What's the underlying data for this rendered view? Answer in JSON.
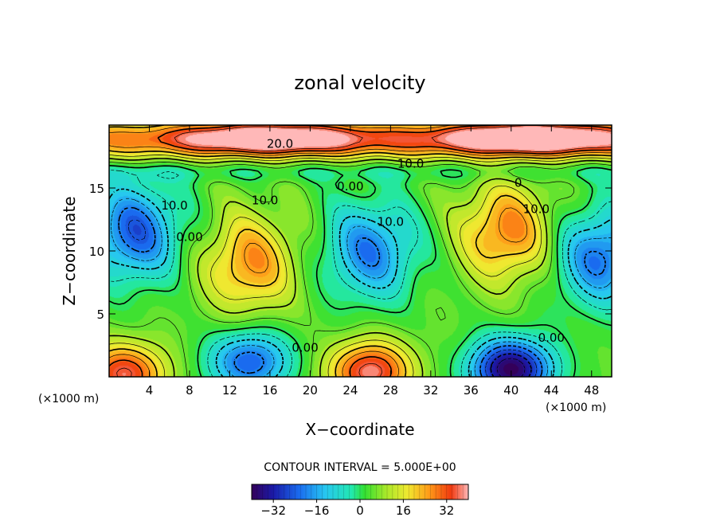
{
  "chart_data": {
    "type": "heatmap",
    "title": "zonal velocity",
    "xlabel": "X−coordinate",
    "ylabel": "Z−coordinate",
    "x_unit_left": "(×1000 m)",
    "x_unit_right": "(×1000 m)",
    "x_ticks": [
      4,
      8,
      12,
      16,
      20,
      24,
      28,
      32,
      36,
      40,
      44,
      48
    ],
    "y_ticks": [
      5,
      10,
      15
    ],
    "xlim": [
      0,
      50
    ],
    "ylim": [
      0,
      20
    ],
    "contour_interval_label": "CONTOUR INTERVAL = 5.000E+00",
    "colorbar": {
      "range": [
        -40,
        40
      ],
      "tick_values": [
        -32,
        -16,
        0,
        16,
        32
      ],
      "tick_labels": [
        "−32",
        "−16",
        "0",
        "16",
        "32"
      ]
    },
    "contour_labels": [
      {
        "text": "20.0",
        "x": 17.0,
        "z": 18.2
      },
      {
        "text": "10.0",
        "x": 30.0,
        "z": 16.6
      },
      {
        "text": "0.00",
        "x": 24.0,
        "z": 14.8
      },
      {
        "text": "10.0",
        "x": 15.5,
        "z": 13.7
      },
      {
        "text": "10.0",
        "x": 6.5,
        "z": 13.3
      },
      {
        "text": "0.00",
        "x": 8.0,
        "z": 10.8
      },
      {
        "text": "10.0",
        "x": 28.0,
        "z": 12.0
      },
      {
        "text": "10.0",
        "x": 42.5,
        "z": 13.0
      },
      {
        "text": "0",
        "x": 40.7,
        "z": 15.1
      },
      {
        "text": "0.00",
        "x": 19.5,
        "z": 2.0
      },
      {
        "text": "0.00",
        "x": 44.0,
        "z": 2.8
      }
    ],
    "field_features": [
      {
        "x": 1.5,
        "z": 0.2,
        "value": 36
      },
      {
        "x": 14.0,
        "z": 9.0,
        "value": 26
      },
      {
        "x": 26.0,
        "z": 0.4,
        "value": 38
      },
      {
        "x": 39.5,
        "z": 11.5,
        "value": 28
      },
      {
        "x": 2.5,
        "z": 11.5,
        "value": -24
      },
      {
        "x": 14.0,
        "z": 1.2,
        "value": -24
      },
      {
        "x": 26.0,
        "z": 10.0,
        "value": -20
      },
      {
        "x": 40.0,
        "z": 0.6,
        "value": -40
      },
      {
        "x": 49.0,
        "z": 9.5,
        "value": -22
      },
      {
        "x": 16.0,
        "z": 19.0,
        "value": 32
      },
      {
        "x": 42.0,
        "z": 19.0,
        "value": 36
      }
    ]
  }
}
